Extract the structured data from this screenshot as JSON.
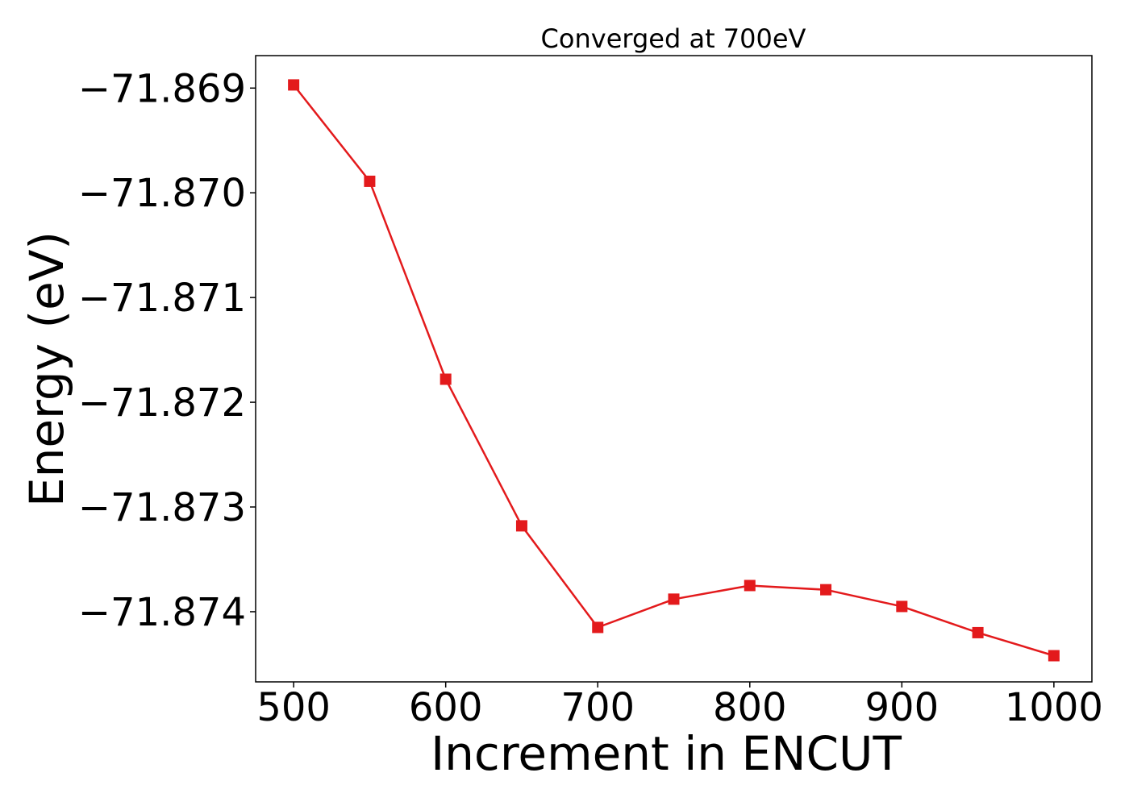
{
  "chart_data": {
    "type": "line",
    "title": "Converged at 700eV",
    "xlabel": "Increment in ENCUT",
    "ylabel": "Energy (eV)",
    "x": [
      500,
      550,
      600,
      650,
      700,
      750,
      800,
      850,
      900,
      950,
      1000
    ],
    "series": [
      {
        "values": [
          -71.86897,
          -71.86989,
          -71.87178,
          -71.87318,
          -71.87415,
          -71.87388,
          -71.87375,
          -71.87379,
          -71.87395,
          -71.8742,
          -71.87442
        ],
        "color": "#e31a1c",
        "marker": "square"
      }
    ],
    "xticks": [
      500,
      600,
      700,
      800,
      900,
      1000
    ],
    "xtick_labels": [
      "500",
      "600",
      "700",
      "800",
      "900",
      "1000"
    ],
    "yticks": [
      -71.869,
      -71.87,
      -71.871,
      -71.872,
      -71.873,
      -71.874
    ],
    "ytick_labels": [
      "−71.869",
      "−71.870",
      "−71.871",
      "−71.872",
      "−71.873",
      "−71.874"
    ],
    "xlim": [
      475,
      1025
    ],
    "ylim": [
      -71.87467,
      -71.86869
    ],
    "grid": false,
    "legend": false
  }
}
